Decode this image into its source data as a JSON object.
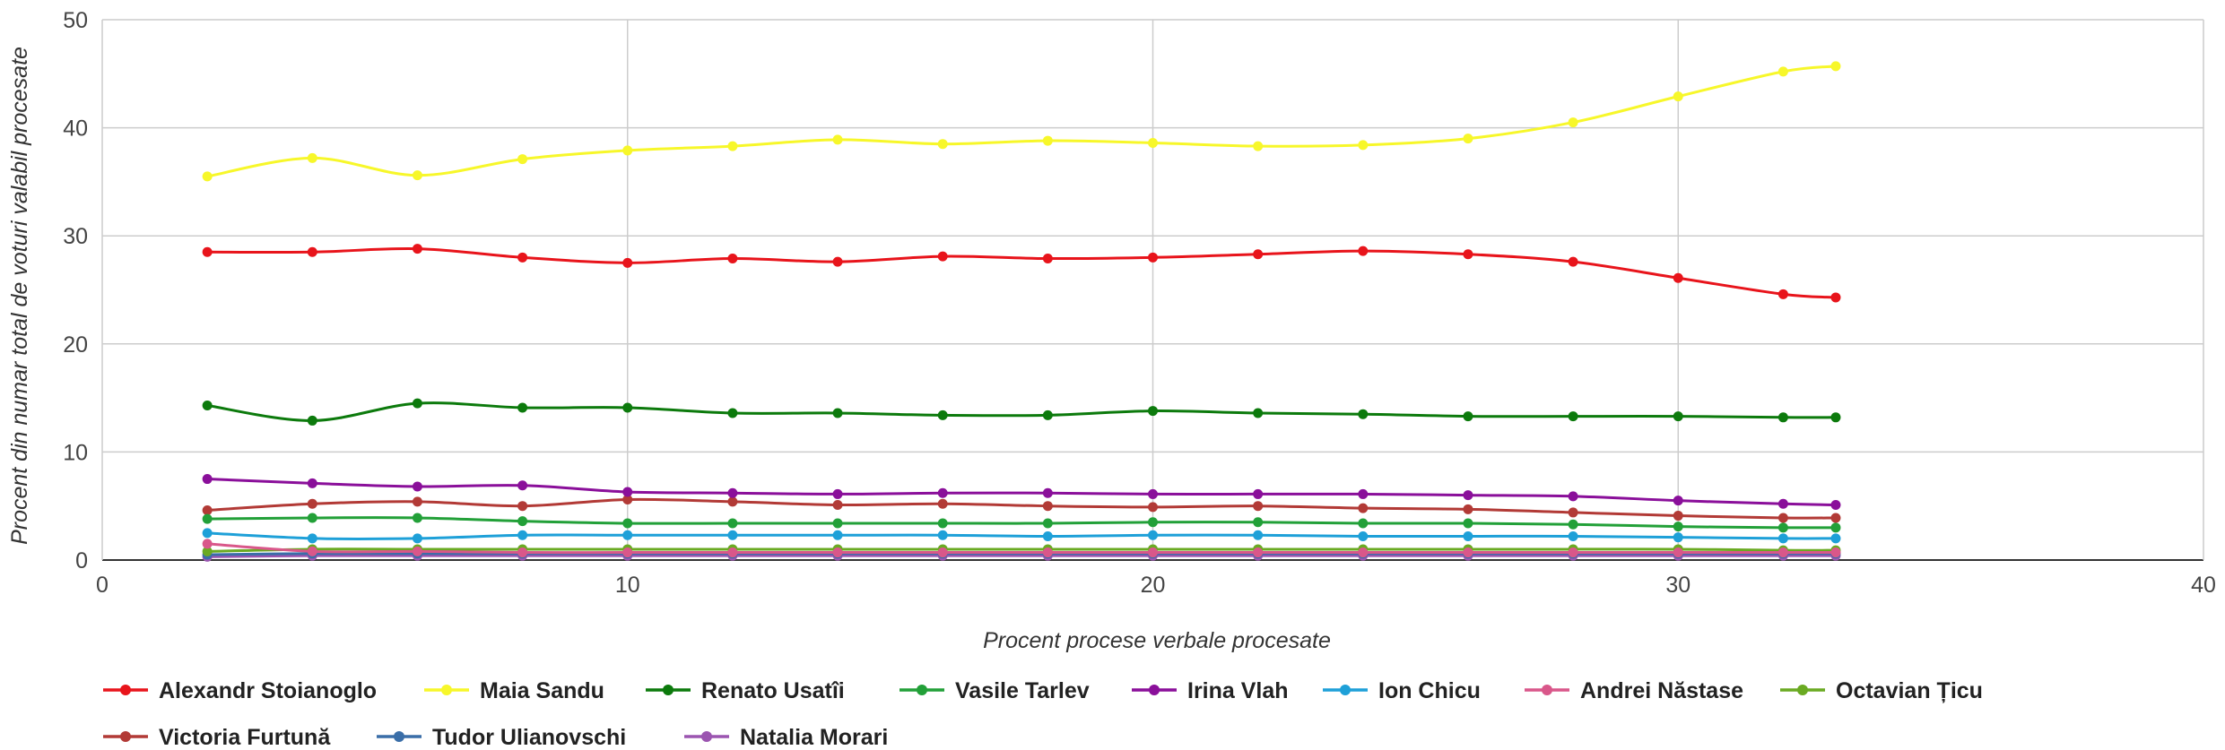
{
  "chart_data": {
    "type": "line",
    "title": "",
    "xlabel": "Procent procese verbale procesate",
    "ylabel": "Procent din numar total de voturi valabil procesate",
    "xlim": [
      0,
      40
    ],
    "ylim": [
      0,
      50
    ],
    "x_ticks": [
      0,
      10,
      20,
      30,
      40
    ],
    "y_ticks": [
      0,
      10,
      20,
      30,
      40,
      50
    ],
    "grid": true,
    "legend_position": "bottom",
    "x": [
      2,
      4,
      6,
      8,
      10,
      12,
      14,
      16,
      18,
      20,
      22,
      24,
      26,
      28,
      30,
      32,
      33
    ],
    "series": [
      {
        "name": "Alexandr Stoianoglo",
        "color": "#e8141b",
        "values": [
          28.5,
          28.5,
          28.8,
          28.0,
          27.5,
          27.9,
          27.6,
          28.1,
          27.9,
          28.0,
          28.3,
          28.6,
          28.3,
          27.6,
          26.1,
          24.6,
          24.3
        ]
      },
      {
        "name": "Maia Sandu",
        "color": "#f7f72a",
        "values": [
          35.5,
          37.2,
          35.6,
          37.1,
          37.9,
          38.3,
          38.9,
          38.5,
          38.8,
          38.6,
          38.3,
          38.4,
          39.0,
          40.5,
          42.9,
          45.2,
          45.7
        ]
      },
      {
        "name": "Renato Usatîi",
        "color": "#0c7a0c",
        "values": [
          14.3,
          12.9,
          14.5,
          14.1,
          14.1,
          13.6,
          13.6,
          13.4,
          13.4,
          13.8,
          13.6,
          13.5,
          13.3,
          13.3,
          13.3,
          13.2,
          13.2
        ]
      },
      {
        "name": "Vasile Tarlev",
        "color": "#22a038",
        "values": [
          3.8,
          3.9,
          3.9,
          3.6,
          3.4,
          3.4,
          3.4,
          3.4,
          3.4,
          3.5,
          3.5,
          3.4,
          3.4,
          3.3,
          3.1,
          3.0,
          3.0
        ]
      },
      {
        "name": "Irina Vlah",
        "color": "#8a0f9a",
        "values": [
          7.5,
          7.1,
          6.8,
          6.9,
          6.3,
          6.2,
          6.1,
          6.2,
          6.2,
          6.1,
          6.1,
          6.1,
          6.0,
          5.9,
          5.5,
          5.2,
          5.1
        ]
      },
      {
        "name": "Ion Chicu",
        "color": "#1ea0d8",
        "values": [
          2.5,
          2.0,
          2.0,
          2.3,
          2.3,
          2.3,
          2.3,
          2.3,
          2.2,
          2.3,
          2.3,
          2.2,
          2.2,
          2.2,
          2.1,
          2.0,
          2.0
        ]
      },
      {
        "name": "Andrei Năstase",
        "color": "#d9578a",
        "values": [
          1.5,
          0.8,
          0.8,
          0.7,
          0.7,
          0.7,
          0.7,
          0.7,
          0.7,
          0.7,
          0.7,
          0.7,
          0.7,
          0.7,
          0.7,
          0.7,
          0.7
        ]
      },
      {
        "name": "Octavian Țicu",
        "color": "#6aaa22",
        "values": [
          0.8,
          1.0,
          1.0,
          1.0,
          1.0,
          1.0,
          1.0,
          1.0,
          1.0,
          1.0,
          1.0,
          1.0,
          1.0,
          1.0,
          1.0,
          0.9,
          0.9
        ]
      },
      {
        "name": "Victoria Furtună",
        "color": "#b23a36",
        "values": [
          4.6,
          5.2,
          5.4,
          5.0,
          5.6,
          5.4,
          5.1,
          5.2,
          5.0,
          4.9,
          5.0,
          4.8,
          4.7,
          4.4,
          4.1,
          3.9,
          3.9
        ]
      },
      {
        "name": "Tudor Ulianovschi",
        "color": "#3a6ea8",
        "values": [
          0.5,
          0.6,
          0.6,
          0.6,
          0.6,
          0.6,
          0.6,
          0.6,
          0.6,
          0.6,
          0.6,
          0.6,
          0.6,
          0.6,
          0.6,
          0.6,
          0.6
        ]
      },
      {
        "name": "Natalia Morari",
        "color": "#9b55b0",
        "values": [
          0.3,
          0.4,
          0.4,
          0.4,
          0.4,
          0.4,
          0.4,
          0.4,
          0.4,
          0.4,
          0.4,
          0.4,
          0.4,
          0.4,
          0.4,
          0.4,
          0.4
        ]
      }
    ]
  }
}
